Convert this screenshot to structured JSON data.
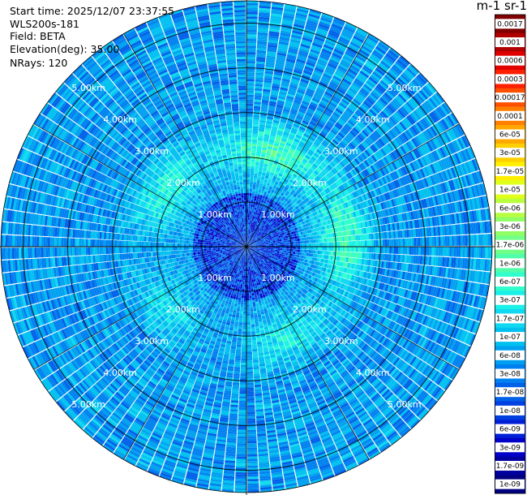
{
  "info": {
    "start_time": "Start time: 2025/12/07 23:37:55",
    "instrument": "WLS200s-181",
    "field": "Field: BETA",
    "elevation": "Elevation(deg): 35.00",
    "nrays": "NRays: 120"
  },
  "colorbar": {
    "unit_title": "m-1 sr-1",
    "labels": [
      "0.0017",
      "0.001",
      "0.0006",
      "0.0003",
      "0.00017",
      "0.0001",
      "6e-05",
      "3e-05",
      "1.7e-05",
      "1e-05",
      "6e-06",
      "3e-06",
      "1.7e-06",
      "1e-06",
      "6e-07",
      "3e-07",
      "1.7e-07",
      "1e-07",
      "6e-08",
      "3e-08",
      "1.7e-08",
      "1e-08",
      "6e-09",
      "3e-09",
      "1.7e-09",
      "1e-09"
    ],
    "colors": [
      "#800000",
      "#b00000",
      "#e00000",
      "#ff2000",
      "#ff5000",
      "#ff8000",
      "#ffa800",
      "#ffd000",
      "#fff000",
      "#e0ff1a",
      "#b8ff40",
      "#90ff66",
      "#70ff88",
      "#50ffaa",
      "#30ffcc",
      "#18f0e8",
      "#10d8f0",
      "#00c0f0",
      "#00a0f0",
      "#0080f0",
      "#0060e8",
      "#0040e0",
      "#0020d8",
      "#0000c8",
      "#0000a0",
      "#000080"
    ]
  },
  "chart_data": {
    "type": "ppi",
    "field": "BETA",
    "elevation_deg": 35.0,
    "n_rays": 120,
    "max_range_km": 5.5,
    "range_rings_km": [
      1.0,
      2.0,
      3.0,
      4.0,
      5.0
    ],
    "ring_labels": [
      "1.00km",
      "2.00km",
      "3.00km",
      "4.00km",
      "5.00km"
    ],
    "spokes_deg": [
      0,
      30,
      60,
      90,
      120,
      150,
      180,
      210,
      240,
      270,
      300,
      330
    ],
    "grid": true,
    "colorbar_position": "right",
    "colorbar_scale": "log",
    "value_range": [
      1e-09,
      0.0017
    ],
    "features": [
      {
        "description": "enhanced backscatter patches",
        "range_km": [
          1.5,
          3.0
        ],
        "value_approx": 3e-07
      },
      {
        "description": "background far field",
        "range_km": [
          3.0,
          5.5
        ],
        "value_approx": 5e-08
      },
      {
        "description": "near field",
        "range_km": [
          0.0,
          1.2
        ],
        "value_approx": 1e-08
      }
    ]
  }
}
